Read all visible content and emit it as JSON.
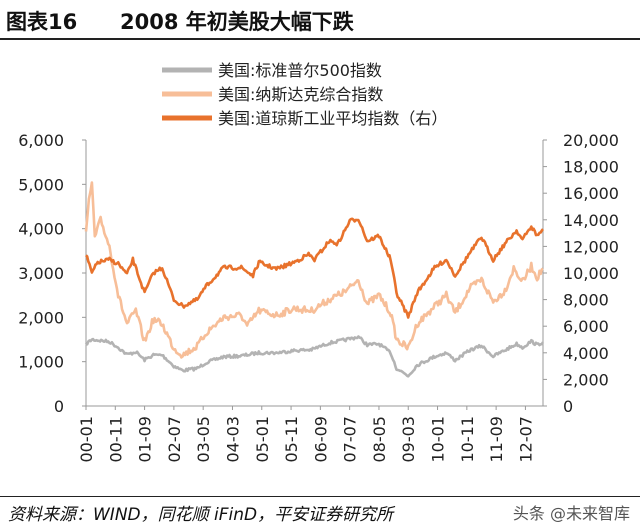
{
  "header": {
    "figure_label": "图表16",
    "title": "2008 年初美股大幅下跌"
  },
  "footer": {
    "source": "资料来源：WIND，同花顺 iFinD，平安证券研究所",
    "watermark": "头条 @未来智库"
  },
  "colors": {
    "sp500": "#b3b3b3",
    "nasdaq": "#f7be98",
    "dow": "#e8722c",
    "axis": "#999999"
  },
  "chart_data": {
    "type": "line",
    "legend_position": "top",
    "grid": false,
    "x_ticks": [
      "00-01",
      "00-11",
      "01-09",
      "02-07",
      "03-05",
      "04-03",
      "05-01",
      "05-11",
      "06-09",
      "07-07",
      "08-05",
      "09-03",
      "10-01",
      "10-11",
      "11-09",
      "12-07"
    ],
    "x_range": [
      "2000-01",
      "2013-01"
    ],
    "y_left": {
      "ticks": [
        "0",
        "1,000",
        "2,000",
        "3,000",
        "4,000",
        "5,000",
        "6,000"
      ],
      "range": [
        0,
        6000
      ]
    },
    "y_right": {
      "ticks": [
        "0",
        "2,000",
        "4,000",
        "6,000",
        "8,000",
        "10,000",
        "12,000",
        "14,000",
        "16,000",
        "18,000",
        "20,000"
      ],
      "range": [
        0,
        20000
      ]
    },
    "series": [
      {
        "name": "美国:标准普尔500指数",
        "axis": "left",
        "color_key": "sp500",
        "points": [
          [
            "2000-01",
            1400
          ],
          [
            "2000-03",
            1500
          ],
          [
            "2000-09",
            1450
          ],
          [
            "2000-12",
            1320
          ],
          [
            "2001-03",
            1160
          ],
          [
            "2001-06",
            1220
          ],
          [
            "2001-09",
            1040
          ],
          [
            "2001-12",
            1150
          ],
          [
            "2002-03",
            1150
          ],
          [
            "2002-07",
            900
          ],
          [
            "2002-10",
            800
          ],
          [
            "2003-03",
            850
          ],
          [
            "2003-06",
            980
          ],
          [
            "2003-12",
            1110
          ],
          [
            "2004-06",
            1130
          ],
          [
            "2004-12",
            1200
          ],
          [
            "2005-06",
            1200
          ],
          [
            "2005-12",
            1250
          ],
          [
            "2006-06",
            1270
          ],
          [
            "2006-12",
            1420
          ],
          [
            "2007-06",
            1500
          ],
          [
            "2007-10",
            1560
          ],
          [
            "2008-01",
            1380
          ],
          [
            "2008-05",
            1400
          ],
          [
            "2008-09",
            1200
          ],
          [
            "2008-11",
            850
          ],
          [
            "2009-03",
            680
          ],
          [
            "2009-06",
            920
          ],
          [
            "2009-12",
            1115
          ],
          [
            "2010-04",
            1200
          ],
          [
            "2010-07",
            1030
          ],
          [
            "2010-12",
            1257
          ],
          [
            "2011-04",
            1360
          ],
          [
            "2011-08",
            1120
          ],
          [
            "2011-12",
            1257
          ],
          [
            "2012-04",
            1400
          ],
          [
            "2012-06",
            1320
          ],
          [
            "2012-09",
            1460
          ],
          [
            "2012-11",
            1380
          ],
          [
            "2013-01",
            1440
          ]
        ]
      },
      {
        "name": "美国:纳斯达克综合指数",
        "axis": "left",
        "color_key": "nasdaq",
        "points": [
          [
            "2000-01",
            3900
          ],
          [
            "2000-02",
            4600
          ],
          [
            "2000-03",
            5050
          ],
          [
            "2000-04",
            3800
          ],
          [
            "2000-06",
            4200
          ],
          [
            "2000-09",
            3600
          ],
          [
            "2000-12",
            2500
          ],
          [
            "2001-03",
            1850
          ],
          [
            "2001-06",
            2150
          ],
          [
            "2001-09",
            1450
          ],
          [
            "2001-12",
            1950
          ],
          [
            "2002-03",
            1850
          ],
          [
            "2002-07",
            1300
          ],
          [
            "2002-10",
            1150
          ],
          [
            "2003-03",
            1350
          ],
          [
            "2003-06",
            1650
          ],
          [
            "2003-12",
            2000
          ],
          [
            "2004-06",
            2050
          ],
          [
            "2004-08",
            1800
          ],
          [
            "2004-12",
            2150
          ],
          [
            "2005-06",
            2050
          ],
          [
            "2005-12",
            2200
          ],
          [
            "2006-06",
            2150
          ],
          [
            "2006-12",
            2400
          ],
          [
            "2007-06",
            2600
          ],
          [
            "2007-10",
            2850
          ],
          [
            "2008-01",
            2300
          ],
          [
            "2008-05",
            2500
          ],
          [
            "2008-09",
            2100
          ],
          [
            "2008-11",
            1500
          ],
          [
            "2009-03",
            1300
          ],
          [
            "2009-06",
            1850
          ],
          [
            "2009-12",
            2250
          ],
          [
            "2010-04",
            2500
          ],
          [
            "2010-07",
            2100
          ],
          [
            "2010-12",
            2650
          ],
          [
            "2011-04",
            2850
          ],
          [
            "2011-08",
            2350
          ],
          [
            "2011-12",
            2600
          ],
          [
            "2012-03",
            3100
          ],
          [
            "2012-06",
            2800
          ],
          [
            "2012-09",
            3150
          ],
          [
            "2012-11",
            2900
          ],
          [
            "2013-01",
            3100
          ]
        ]
      },
      {
        "name": "美国:道琼斯工业平均指数（右）",
        "axis": "right",
        "color_key": "dow",
        "points": [
          [
            "2000-01",
            11400
          ],
          [
            "2000-03",
            10000
          ],
          [
            "2000-05",
            10800
          ],
          [
            "2000-09",
            11000
          ],
          [
            "2000-12",
            10700
          ],
          [
            "2001-03",
            9900
          ],
          [
            "2001-05",
            11000
          ],
          [
            "2001-09",
            8500
          ],
          [
            "2001-12",
            10000
          ],
          [
            "2002-03",
            10400
          ],
          [
            "2002-07",
            8000
          ],
          [
            "2002-10",
            7500
          ],
          [
            "2003-03",
            8000
          ],
          [
            "2003-06",
            9000
          ],
          [
            "2003-12",
            10400
          ],
          [
            "2004-06",
            10400
          ],
          [
            "2004-10",
            9800
          ],
          [
            "2004-12",
            10800
          ],
          [
            "2005-06",
            10300
          ],
          [
            "2005-12",
            10800
          ],
          [
            "2006-05",
            11400
          ],
          [
            "2006-07",
            11000
          ],
          [
            "2006-12",
            12400
          ],
          [
            "2007-03",
            12200
          ],
          [
            "2007-07",
            13900
          ],
          [
            "2007-10",
            14100
          ],
          [
            "2008-01",
            12400
          ],
          [
            "2008-05",
            12800
          ],
          [
            "2008-09",
            11000
          ],
          [
            "2008-11",
            8500
          ],
          [
            "2009-03",
            6700
          ],
          [
            "2009-06",
            8500
          ],
          [
            "2009-12",
            10400
          ],
          [
            "2010-04",
            11000
          ],
          [
            "2010-07",
            9800
          ],
          [
            "2010-12",
            11500
          ],
          [
            "2011-04",
            12700
          ],
          [
            "2011-08",
            11000
          ],
          [
            "2011-12",
            12200
          ],
          [
            "2012-04",
            13200
          ],
          [
            "2012-06",
            12500
          ],
          [
            "2012-09",
            13500
          ],
          [
            "2012-11",
            12800
          ],
          [
            "2013-01",
            13300
          ]
        ]
      }
    ]
  }
}
